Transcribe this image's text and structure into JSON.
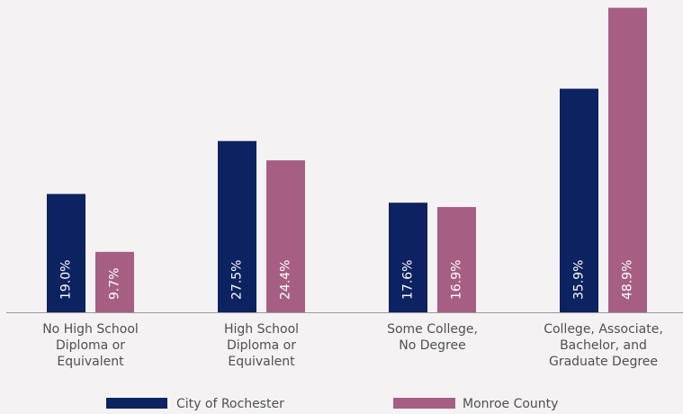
{
  "chart_data": {
    "type": "bar",
    "title": "",
    "xlabel": "",
    "ylabel": "",
    "ylim": [
      0,
      52
    ],
    "grid": false,
    "legend_position": "bottom",
    "categories": [
      [
        "No High School",
        "Diploma or",
        "Equivalent"
      ],
      [
        "High School",
        "Diploma or",
        "Equivalent"
      ],
      [
        "Some College,",
        "No Degree"
      ],
      [
        "College, Associate,",
        "Bachelor, and",
        "Graduate Degree"
      ]
    ],
    "series": [
      {
        "name": "City of Rochester",
        "color": "#0d2260",
        "values": [
          19.0,
          27.5,
          17.6,
          35.9
        ],
        "labels": [
          "19.0%",
          "27.5%",
          "17.6%",
          "35.9%"
        ]
      },
      {
        "name": "Monroe County",
        "color": "#a65f83",
        "values": [
          9.7,
          24.4,
          16.9,
          48.9
        ],
        "labels": [
          "9.7%",
          "24.4%",
          "16.9%",
          "48.9%"
        ]
      }
    ]
  }
}
